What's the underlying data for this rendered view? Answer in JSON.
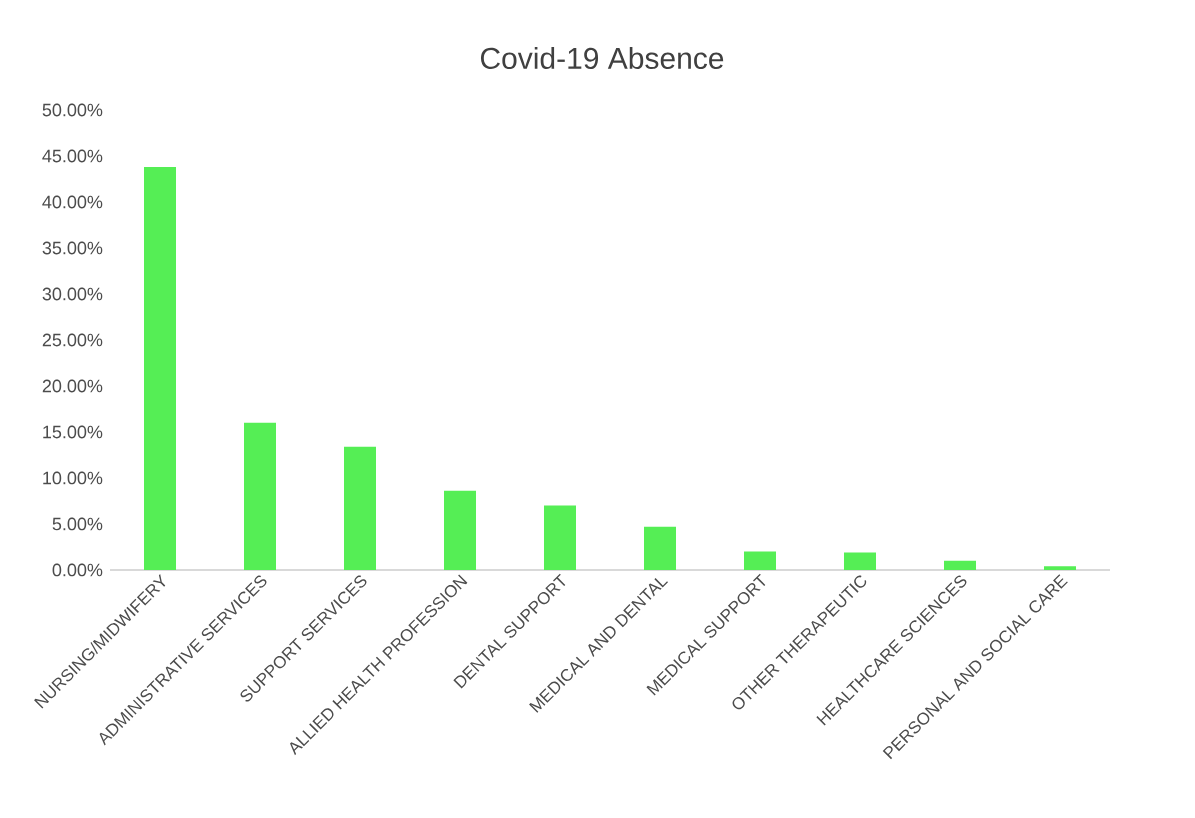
{
  "chart_data": {
    "type": "bar",
    "title": "Covid-19 Absence",
    "categories": [
      "NURSING/MIDWIFERY",
      "ADMINISTRATIVE SERVICES",
      "SUPPORT SERVICES",
      "ALLIED HEALTH PROFESSION",
      "DENTAL SUPPORT",
      "MEDICAL AND DENTAL",
      "MEDICAL SUPPORT",
      "OTHER THERAPEUTIC",
      "HEALTHCARE SCIENCES",
      "PERSONAL AND SOCIAL CARE"
    ],
    "values": [
      43.8,
      16.0,
      13.4,
      8.6,
      7.0,
      4.7,
      2.0,
      1.9,
      1.0,
      0.4
    ],
    "color": "#55ee55",
    "ylim": [
      0,
      50
    ],
    "yticks": [
      {
        "value": 0,
        "label": "0.00%"
      },
      {
        "value": 5,
        "label": "5.00%"
      },
      {
        "value": 10,
        "label": "10.00%"
      },
      {
        "value": 15,
        "label": "15.00%"
      },
      {
        "value": 20,
        "label": "20.00%"
      },
      {
        "value": 25,
        "label": "25.00%"
      },
      {
        "value": 30,
        "label": "30.00%"
      },
      {
        "value": 35,
        "label": "35.00%"
      },
      {
        "value": 40,
        "label": "40.00%"
      },
      {
        "value": 45,
        "label": "45.00%"
      },
      {
        "value": 50,
        "label": "50.00%"
      }
    ],
    "grid": false
  }
}
